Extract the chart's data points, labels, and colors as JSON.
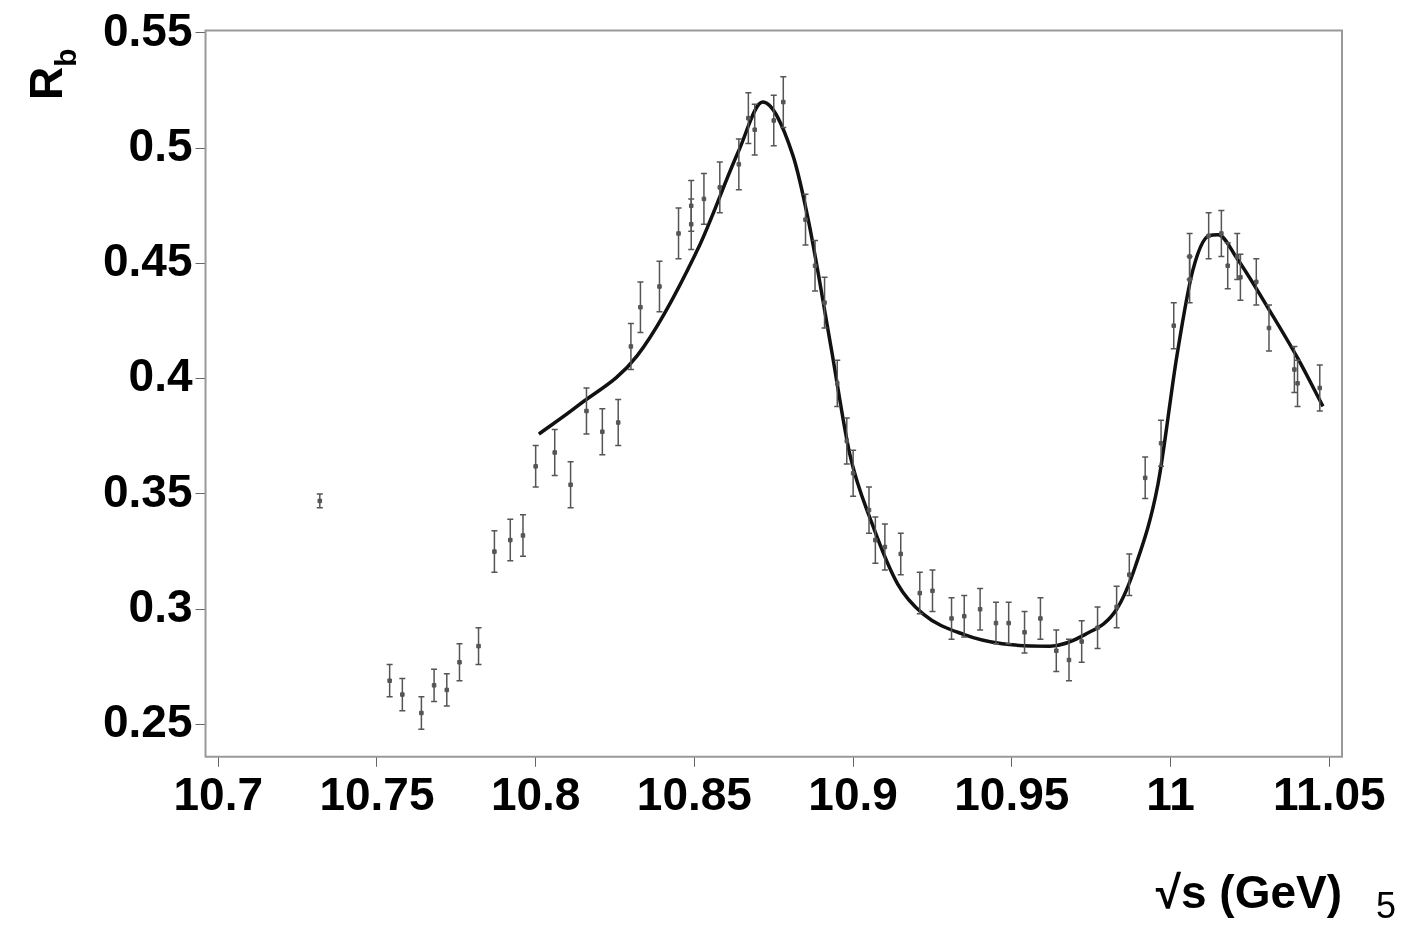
{
  "chart_data": {
    "type": "scatter",
    "xlabel": "√s (GeV)",
    "ylabel": "R$_{b}$",
    "xlim": [
      10.696,
      11.054
    ],
    "ylim": [
      0.236,
      0.551
    ],
    "xticks": [
      {
        "value": 10.7,
        "label": "10.7"
      },
      {
        "value": 10.75,
        "label": "10.75"
      },
      {
        "value": 10.8,
        "label": "10.8"
      },
      {
        "value": 10.85,
        "label": "10.85"
      },
      {
        "value": 10.9,
        "label": "10.9"
      },
      {
        "value": 10.95,
        "label": "10.95"
      },
      {
        "value": 11,
        "label": "11"
      },
      {
        "value": 11.05,
        "label": "11.05"
      }
    ],
    "yticks": [
      {
        "value": 0.25,
        "label": "0.25"
      },
      {
        "value": 0.3,
        "label": "0.3"
      },
      {
        "value": 0.35,
        "label": "0.35"
      },
      {
        "value": 0.4,
        "label": "0.4"
      },
      {
        "value": 0.45,
        "label": "0.45"
      },
      {
        "value": 0.5,
        "label": "0.5"
      },
      {
        "value": 0.55,
        "label": "0.55"
      }
    ],
    "grid": false,
    "legend": false,
    "annotations": [
      "5"
    ],
    "series": [
      {
        "color": "#555555",
        "marker": "square",
        "x": [
          10.732,
          10.754,
          10.758,
          10.764,
          10.768,
          10.772,
          10.776,
          10.782,
          10.787,
          10.792,
          10.796,
          10.8,
          10.806,
          10.811,
          10.816,
          10.821,
          10.826,
          10.83,
          10.833,
          10.839,
          10.845,
          10.849,
          10.849,
          10.853,
          10.858,
          10.864,
          10.867,
          10.869,
          10.875,
          10.878,
          10.885,
          10.888,
          10.891,
          10.895,
          10.898,
          10.9,
          10.905,
          10.907,
          10.91,
          10.915,
          10.921,
          10.925,
          10.931,
          10.935,
          10.94,
          10.945,
          10.949,
          10.954,
          10.959,
          10.964,
          10.968,
          10.972,
          10.977,
          10.983,
          10.987,
          10.992,
          10.997,
          11.001,
          11.006,
          11.006,
          11.012,
          11.016,
          11.018,
          11.021,
          11.022,
          11.027,
          11.031,
          11.039,
          11.04,
          11.047
        ],
        "values": [
          0.347,
          0.269,
          0.263,
          0.255,
          0.267,
          0.265,
          0.277,
          0.284,
          0.325,
          0.33,
          0.332,
          0.362,
          0.368,
          0.354,
          0.386,
          0.377,
          0.381,
          0.414,
          0.431,
          0.44,
          0.463,
          0.475,
          0.467,
          0.478,
          0.483,
          0.493,
          0.513,
          0.508,
          0.512,
          0.52,
          0.469,
          0.449,
          0.433,
          0.398,
          0.373,
          0.359,
          0.343,
          0.33,
          0.327,
          0.324,
          0.307,
          0.308,
          0.296,
          0.297,
          0.3,
          0.294,
          0.294,
          0.29,
          0.296,
          0.282,
          0.278,
          0.286,
          0.292,
          0.301,
          0.315,
          0.357,
          0.372,
          0.423,
          0.443,
          0.453,
          0.462,
          0.463,
          0.449,
          0.453,
          0.444,
          0.442,
          0.422,
          0.404,
          0.398,
          0.396
        ],
        "errors": [
          0.003,
          0.007,
          0.007,
          0.007,
          0.007,
          0.007,
          0.008,
          0.008,
          0.009,
          0.009,
          0.009,
          0.009,
          0.01,
          0.01,
          0.01,
          0.01,
          0.01,
          0.01,
          0.011,
          0.011,
          0.011,
          0.011,
          0.011,
          0.011,
          0.011,
          0.011,
          0.011,
          0.011,
          0.011,
          0.011,
          0.011,
          0.011,
          0.011,
          0.01,
          0.01,
          0.01,
          0.01,
          0.01,
          0.01,
          0.009,
          0.009,
          0.009,
          0.009,
          0.009,
          0.009,
          0.009,
          0.009,
          0.009,
          0.009,
          0.009,
          0.009,
          0.009,
          0.009,
          0.009,
          0.009,
          0.009,
          0.01,
          0.01,
          0.01,
          0.01,
          0.01,
          0.01,
          0.01,
          0.01,
          0.01,
          0.01,
          0.01,
          0.01,
          0.01,
          0.01
        ]
      },
      {
        "type": "line",
        "color": "#111111",
        "marker": "none",
        "line_style": "solid",
        "x": [
          10.801,
          10.813,
          10.832,
          10.851,
          10.864,
          10.8715,
          10.881,
          10.886,
          10.893,
          10.899,
          10.906,
          10.914,
          10.922,
          10.935,
          10.947,
          10.962,
          10.973,
          10.983,
          10.989,
          10.996,
          11.002,
          11.007,
          11.012,
          11.015,
          11.021,
          11.031,
          11.04,
          11.048
        ],
        "values": [
          0.376,
          0.388,
          0.41,
          0.456,
          0.499,
          0.52,
          0.497,
          0.468,
          0.414,
          0.367,
          0.337,
          0.311,
          0.298,
          0.289,
          0.285,
          0.284,
          0.289,
          0.3,
          0.319,
          0.354,
          0.41,
          0.447,
          0.462,
          0.4625,
          0.452,
          0.43,
          0.409,
          0.388
        ]
      }
    ]
  }
}
